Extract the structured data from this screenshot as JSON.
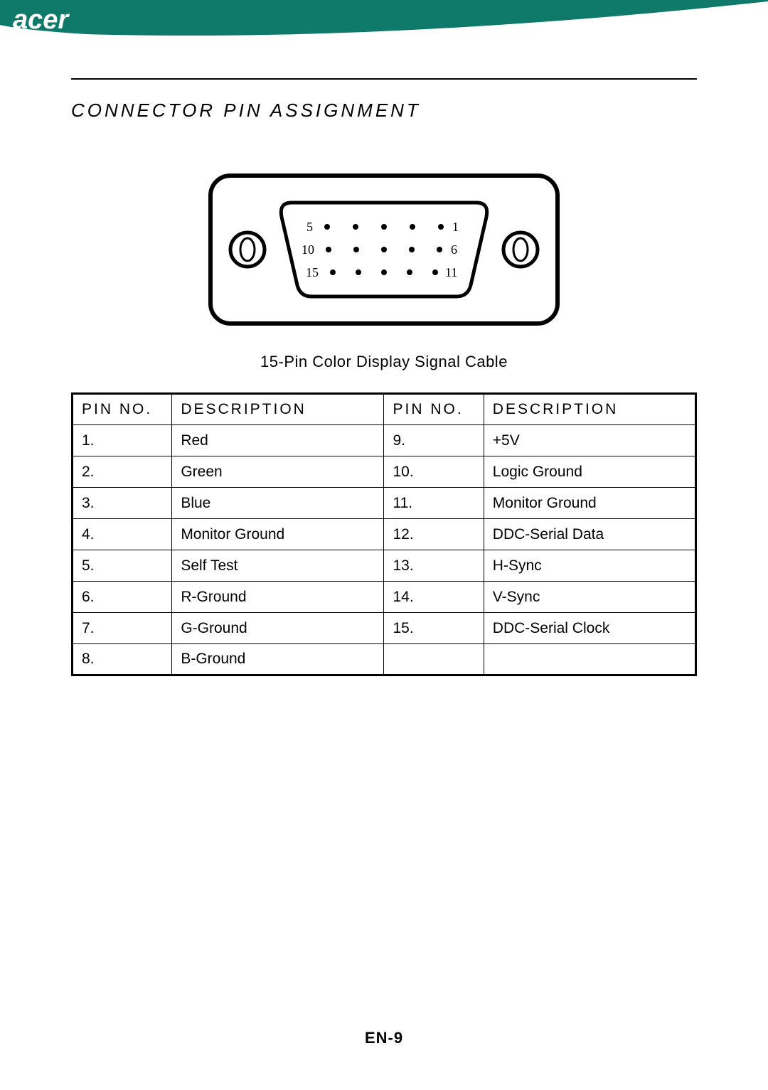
{
  "brand": {
    "name": "acer",
    "arc_color": "#0f7a6a"
  },
  "section": {
    "title": "CONNECTOR PIN ASSIGNMENT"
  },
  "connector": {
    "caption": "15-Pin Color Display Signal Cable",
    "labels": {
      "r1_left": "5",
      "r1_right": "1",
      "r2_left": "10",
      "r2_right": "6",
      "r3_left": "15",
      "r3_right": "11"
    }
  },
  "table": {
    "headers": [
      "PIN NO.",
      "DESCRIPTION",
      "PIN NO.",
      "DESCRIPTION"
    ],
    "rows": [
      [
        "1.",
        "Red",
        "9.",
        "+5V"
      ],
      [
        "2.",
        "Green",
        "10.",
        "Logic Ground"
      ],
      [
        "3.",
        "Blue",
        "11.",
        "Monitor Ground"
      ],
      [
        "4.",
        "Monitor Ground",
        "12.",
        "DDC-Serial Data"
      ],
      [
        "5.",
        "Self Test",
        "13.",
        "H-Sync"
      ],
      [
        "6.",
        "R-Ground",
        "14.",
        "V-Sync"
      ],
      [
        "7.",
        "G-Ground",
        "15.",
        "DDC-Serial Clock"
      ],
      [
        "8.",
        "B-Ground",
        "",
        ""
      ]
    ]
  },
  "page": {
    "number": "EN-9"
  },
  "style": {
    "title_fontsize": 26,
    "caption_fontsize": 22,
    "cell_fontsize": 21,
    "border_color": "#000000",
    "background": "#ffffff"
  }
}
